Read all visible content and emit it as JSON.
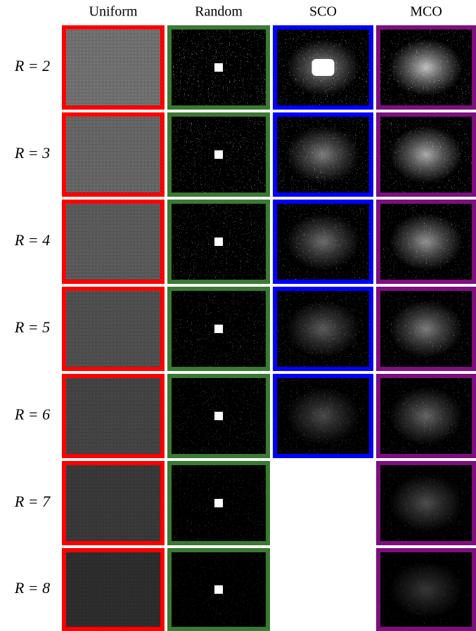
{
  "columns": [
    "Uniform",
    "Random",
    "SCO",
    "MCO"
  ],
  "rows": [
    {
      "label": "R = 2"
    },
    {
      "label": "R = 3"
    },
    {
      "label": "R = 4"
    },
    {
      "label": "R = 5"
    },
    {
      "label": "R = 6"
    },
    {
      "label": "R = 7"
    },
    {
      "label": "R = 8"
    }
  ]
}
